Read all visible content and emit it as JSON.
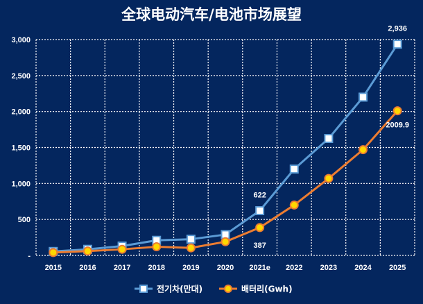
{
  "chart_data": {
    "type": "line",
    "title": "全球电动汽车/电池市场展望",
    "x": [
      "2015",
      "2016",
      "2017",
      "2018",
      "2019",
      "2020",
      "2021e",
      "2022",
      "2023",
      "2024",
      "2025"
    ],
    "y_ticks": [
      "-",
      "500",
      "1,000",
      "1,500",
      "2,000",
      "2,500",
      "3,000"
    ],
    "ylim": [
      0,
      3000
    ],
    "grid": true,
    "legend_position": "bottom",
    "series": [
      {
        "name": "전기차(만대)",
        "color": "#5b9bd5",
        "marker": "square",
        "values": [
          55,
          85,
          130,
          210,
          225,
          290,
          622,
          1200,
          1625,
          2200,
          2936
        ]
      },
      {
        "name": "배터리(Gwh)",
        "color": "#ed7d31",
        "marker": "circle",
        "values": [
          40,
          60,
          85,
          120,
          105,
          190,
          387,
          700,
          1070,
          1470,
          2009.9
        ]
      }
    ],
    "data_labels": [
      {
        "series": 0,
        "index": 6,
        "text": "622",
        "position": "above"
      },
      {
        "series": 1,
        "index": 6,
        "text": "387",
        "position": "below"
      },
      {
        "series": 0,
        "index": 10,
        "text": "2,936",
        "position": "above"
      },
      {
        "series": 1,
        "index": 10,
        "text": "2009.9",
        "position": "below"
      }
    ]
  }
}
